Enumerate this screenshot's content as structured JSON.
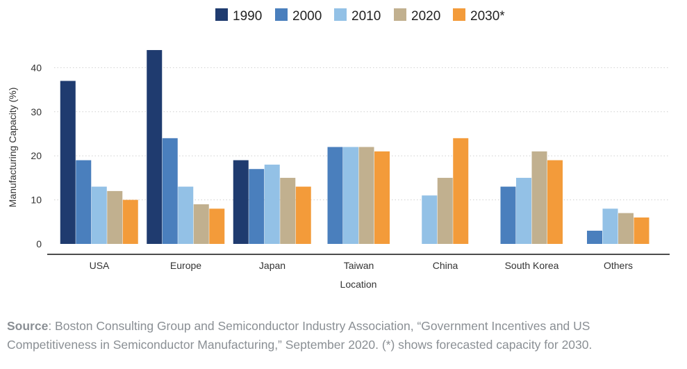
{
  "chart_data": {
    "type": "bar",
    "categories": [
      "USA",
      "Europe",
      "Japan",
      "Taiwan",
      "China",
      "South Korea",
      "Others"
    ],
    "series": [
      {
        "name": "1990",
        "color": "#1f3b6f",
        "values": [
          37,
          44,
          19,
          null,
          null,
          null,
          null
        ]
      },
      {
        "name": "2000",
        "color": "#4a7fbd",
        "values": [
          19,
          24,
          17,
          22,
          null,
          13,
          3
        ]
      },
      {
        "name": "2010",
        "color": "#93c1e6",
        "values": [
          13,
          13,
          18,
          22,
          11,
          15,
          8
        ]
      },
      {
        "name": "2020",
        "color": "#c1b08f",
        "values": [
          12,
          9,
          15,
          22,
          15,
          21,
          7
        ]
      },
      {
        "name": "2030*",
        "color": "#f39b3a",
        "values": [
          10,
          8,
          13,
          21,
          24,
          19,
          6
        ]
      }
    ],
    "xlabel": "Location",
    "ylabel": "Manufacturing Capacity (%)",
    "ylim": [
      0,
      45
    ],
    "yticks": [
      0,
      10,
      20,
      30,
      40
    ],
    "grid": true,
    "legend_position": "top-center"
  },
  "source": {
    "label": "Source",
    "text": ": Boston Consulting Group and Semiconductor Industry Association, “Government Incentives and US Competitiveness in Semiconductor Manufacturing,” September 2020. (*) shows forecasted capacity for 2030."
  }
}
